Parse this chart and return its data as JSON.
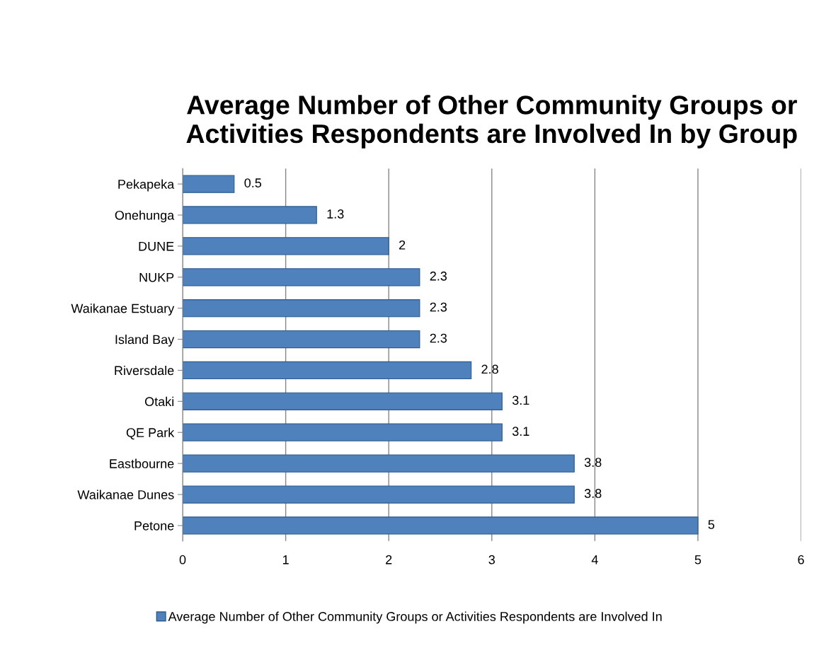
{
  "chart_data": {
    "type": "bar",
    "orientation": "horizontal",
    "title": "Average Number of Other Community Groups or Activities Respondents are Involved In by Group",
    "categories": [
      "Pekapeka",
      "Onehunga",
      "DUNE",
      "NUKP",
      "Waikanae Estuary",
      "Island Bay",
      "Riversdale",
      "Otaki",
      "QE Park",
      "Eastbourne",
      "Waikanae Dunes",
      "Petone"
    ],
    "series": [
      {
        "name": "Average Number of Other Community Groups or Activities Respondents are Involved In",
        "color": "#4f81bd",
        "values": [
          0.5,
          1.3,
          2,
          2.3,
          2.3,
          2.3,
          2.8,
          3.1,
          3.1,
          3.8,
          3.8,
          5
        ]
      }
    ],
    "xlim": [
      0,
      6
    ],
    "xticks": [
      0,
      1,
      2,
      3,
      4,
      5,
      6
    ],
    "grid": "x",
    "legend": "bottom",
    "data_labels": true
  }
}
